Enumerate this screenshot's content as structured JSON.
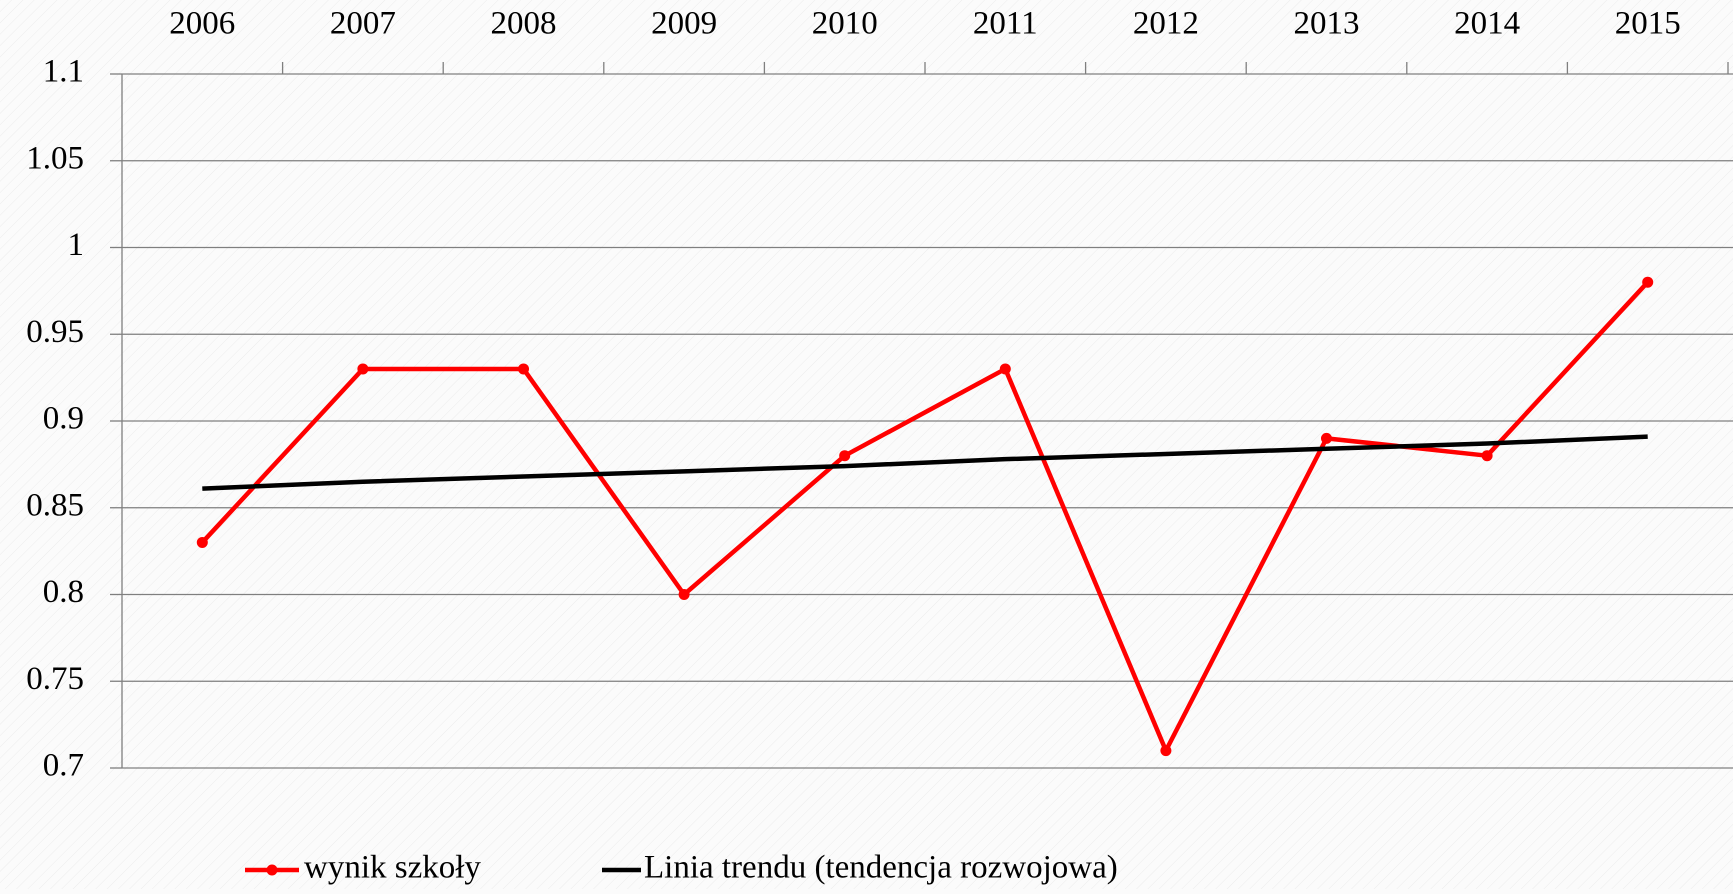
{
  "chart_data": {
    "type": "line",
    "categories": [
      "2006",
      "2007",
      "2008",
      "2009",
      "2010",
      "2011",
      "2012",
      "2013",
      "2014",
      "2015"
    ],
    "series": [
      {
        "name": "wynik szkoły",
        "color": "#ff0000",
        "marker": true,
        "values": [
          0.83,
          0.93,
          0.93,
          0.8,
          0.88,
          0.93,
          0.71,
          0.89,
          0.88,
          0.98
        ]
      },
      {
        "name": "Linia trendu (tendencja rozwojowa)",
        "color": "#000000",
        "marker": false,
        "values": [
          0.861,
          0.865,
          0.868,
          0.871,
          0.874,
          0.878,
          0.881,
          0.884,
          0.887,
          0.891
        ]
      }
    ],
    "ylim": [
      0.7,
      1.1
    ],
    "yticks": [
      1.1,
      1.05,
      1,
      0.95,
      0.9,
      0.85,
      0.8,
      0.75,
      0.7
    ],
    "grid": true,
    "category_axis": "top",
    "legend": "bottom"
  }
}
